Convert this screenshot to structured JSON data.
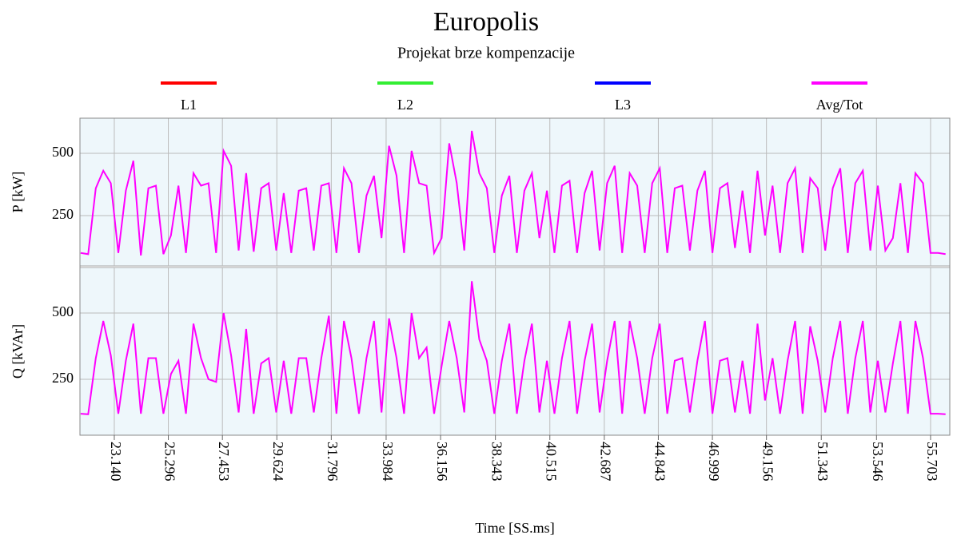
{
  "chart_data": {
    "type": "line",
    "title": "Europolis",
    "subtitle": "Projekat brze kompenzacije",
    "legend": [
      {
        "name": "L1",
        "color": "#ff0000"
      },
      {
        "name": "L2",
        "color": "#33ee33"
      },
      {
        "name": "L3",
        "color": "#0000ff"
      },
      {
        "name": "Avg/Tot",
        "color": "#ff00ff"
      }
    ],
    "xlabel": "Time [SS.ms]",
    "xlim": [
      21.77,
      56.47
    ],
    "xticks": [
      {
        "value": 23.14,
        "label": "23.140"
      },
      25.296,
      27.453,
      29.624,
      31.796,
      33.984,
      36.156,
      38.343,
      40.515,
      42.687,
      44.843,
      46.999,
      49.156,
      51.343,
      53.546,
      55.703
    ],
    "grid": true,
    "x": [
      21.8,
      22.1,
      22.4,
      22.7,
      23.0,
      23.3,
      23.6,
      23.9,
      24.2,
      24.5,
      24.8,
      25.1,
      25.4,
      25.7,
      26.0,
      26.3,
      26.6,
      26.9,
      27.2,
      27.5,
      27.8,
      28.1,
      28.4,
      28.7,
      29.0,
      29.3,
      29.6,
      29.9,
      30.2,
      30.5,
      30.8,
      31.1,
      31.4,
      31.7,
      32.0,
      32.3,
      32.6,
      32.9,
      33.2,
      33.5,
      33.8,
      34.1,
      34.4,
      34.7,
      35.0,
      35.3,
      35.6,
      35.9,
      36.2,
      36.5,
      36.8,
      37.1,
      37.4,
      37.7,
      38.0,
      38.3,
      38.6,
      38.9,
      39.2,
      39.5,
      39.8,
      40.1,
      40.4,
      40.7,
      41.0,
      41.3,
      41.6,
      41.9,
      42.2,
      42.5,
      42.8,
      43.1,
      43.4,
      43.7,
      44.0,
      44.3,
      44.6,
      44.9,
      45.2,
      45.5,
      45.8,
      46.1,
      46.4,
      46.7,
      47.0,
      47.3,
      47.6,
      47.9,
      48.2,
      48.5,
      48.8,
      49.1,
      49.4,
      49.7,
      50.0,
      50.3,
      50.6,
      50.9,
      51.2,
      51.5,
      51.8,
      52.1,
      52.4,
      52.7,
      53.0,
      53.3,
      53.6,
      53.9,
      54.2,
      54.5,
      54.8,
      55.1,
      55.4,
      55.7,
      56.0,
      56.3
    ],
    "panels": [
      {
        "ylabel": "P [kW]",
        "ylim": [
          48,
          641
        ],
        "yticks": [
          250,
          500
        ],
        "series": [
          {
            "name": "Avg/Tot",
            "color": "#ff00ff",
            "values": [
              100,
              95,
              360,
              430,
              380,
              100,
              350,
              470,
              90,
              360,
              370,
              95,
              170,
              370,
              100,
              420,
              370,
              380,
              100,
              510,
              450,
              110,
              420,
              105,
              360,
              380,
              110,
              340,
              100,
              350,
              360,
              110,
              370,
              380,
              100,
              440,
              380,
              100,
              330,
              410,
              160,
              530,
              410,
              100,
              510,
              380,
              370,
              100,
              160,
              540,
              380,
              110,
              590,
              420,
              360,
              100,
              330,
              410,
              100,
              350,
              420,
              160,
              350,
              100,
              370,
              390,
              100,
              340,
              430,
              110,
              380,
              450,
              100,
              420,
              370,
              100,
              380,
              440,
              100,
              360,
              370,
              110,
              350,
              430,
              100,
              360,
              380,
              120,
              350,
              100,
              430,
              170,
              370,
              100,
              380,
              440,
              100,
              400,
              360,
              110,
              360,
              440,
              100,
              380,
              430,
              110,
              370,
              110,
              160,
              380,
              100,
              420,
              380,
              100,
              100,
              95
            ]
          }
        ]
      },
      {
        "ylabel": "Q [kVAr]",
        "ylim": [
          39,
          672
        ],
        "yticks": [
          250,
          500
        ],
        "series": [
          {
            "name": "Avg/Tot",
            "color": "#ff00ff",
            "values": [
              120,
              118,
              330,
              470,
              340,
              120,
              320,
              460,
              120,
              330,
              330,
              120,
              270,
              320,
              120,
              460,
              330,
              250,
              240,
              500,
              340,
              125,
              440,
              120,
              310,
              330,
              125,
              320,
              120,
              330,
              330,
              125,
              330,
              490,
              120,
              470,
              330,
              120,
              330,
              470,
              125,
              480,
              330,
              120,
              500,
              330,
              370,
              120,
              300,
              470,
              330,
              125,
              620,
              400,
              320,
              120,
              320,
              460,
              120,
              320,
              460,
              125,
              320,
              120,
              330,
              470,
              120,
              320,
              460,
              125,
              320,
              470,
              120,
              470,
              330,
              120,
              330,
              460,
              120,
              320,
              330,
              125,
              320,
              470,
              120,
              320,
              330,
              125,
              320,
              120,
              460,
              170,
              330,
              120,
              320,
              470,
              120,
              450,
              320,
              125,
              330,
              470,
              120,
              330,
              470,
              125,
              320,
              125,
              310,
              470,
              120,
              470,
              330,
              120,
              120,
              118
            ]
          }
        ]
      }
    ]
  }
}
